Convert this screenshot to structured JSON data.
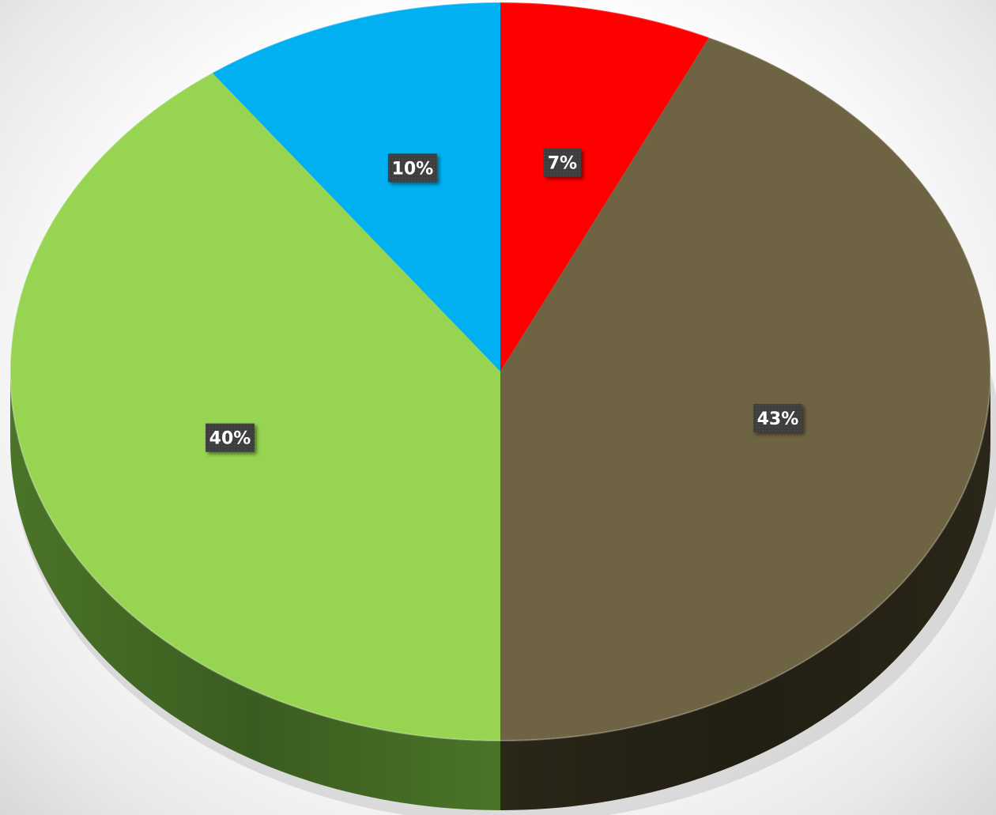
{
  "chart_data": {
    "type": "pie",
    "style": "3d",
    "title": "",
    "categories": [
      "",
      "",
      "",
      ""
    ],
    "values": [
      7,
      43,
      40,
      10
    ],
    "labels": [
      "7%",
      "43%",
      "40%",
      "10%"
    ],
    "colors": [
      "#ff0000",
      "#6e6342",
      "#96d452",
      "#00b0f0"
    ],
    "side_colors": [
      "#8a0000",
      "#2c2819",
      "#4e7a2a",
      "#006f99"
    ],
    "start_angle_deg": -90,
    "direction": "clockwise",
    "legend": "none",
    "data_label_background": "#3f3f3f"
  }
}
